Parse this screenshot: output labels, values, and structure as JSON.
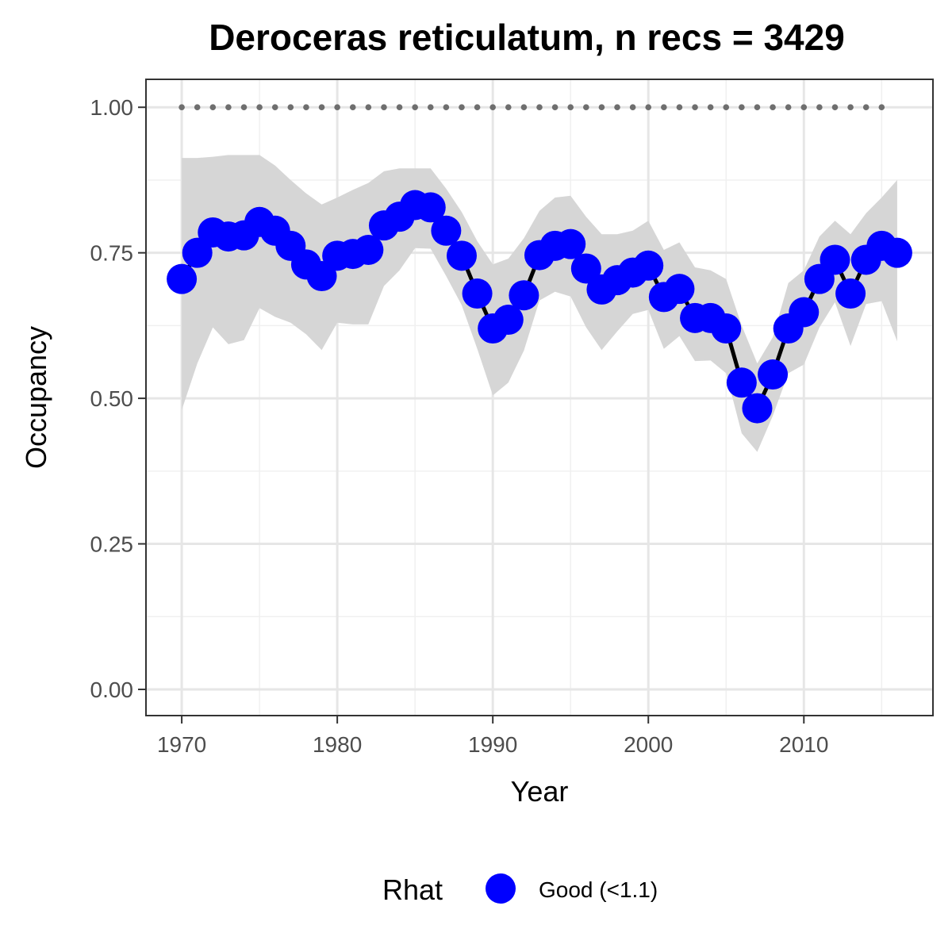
{
  "chart_data": {
    "type": "line",
    "title": "Deroceras reticulatum, n recs = 3429",
    "xlabel": "Year",
    "ylabel": "Occupancy",
    "xlim": [
      1967.7,
      2018.3
    ],
    "ylim": [
      -0.045,
      1.048
    ],
    "x_ticks": [
      1970,
      1980,
      1990,
      2000,
      2010
    ],
    "x_tick_labels": [
      "1970",
      "1980",
      "1990",
      "2000",
      "2010"
    ],
    "y_ticks": [
      0,
      0.25,
      0.5,
      0.75,
      1.0
    ],
    "y_tick_labels": [
      "0.00",
      "0.25",
      "0.50",
      "0.75",
      "1.00"
    ],
    "grid": true,
    "legend": {
      "title": "Rhat",
      "position": "bottom",
      "items": [
        {
          "label": "Good (<1.1)",
          "color": "#0000ff"
        }
      ]
    },
    "colors": {
      "points": "#0000ff",
      "line": "#000000",
      "ribbon": "#d6d6d6",
      "reference": "#6e6e6e"
    },
    "x": [
      1970,
      1971,
      1972,
      1973,
      1974,
      1975,
      1976,
      1977,
      1978,
      1979,
      1980,
      1981,
      1982,
      1983,
      1984,
      1985,
      1986,
      1987,
      1988,
      1989,
      1990,
      1991,
      1992,
      1993,
      1994,
      1995,
      1996,
      1997,
      1998,
      1999,
      2000,
      2001,
      2002,
      2003,
      2004,
      2005,
      2006,
      2007,
      2008,
      2009,
      2010,
      2011,
      2012,
      2013,
      2014,
      2015,
      2016
    ],
    "series": [
      {
        "values": [
          0.705,
          0.75,
          0.785,
          0.778,
          0.78,
          0.803,
          0.788,
          0.762,
          0.73,
          0.71,
          0.745,
          0.748,
          0.755,
          0.797,
          0.812,
          0.832,
          0.828,
          0.788,
          0.745,
          0.68,
          0.62,
          0.635,
          0.677,
          0.746,
          0.762,
          0.765,
          0.723,
          0.687,
          0.703,
          0.716,
          0.728,
          0.674,
          0.688,
          0.638,
          0.638,
          0.62,
          0.527,
          0.483,
          0.541,
          0.62,
          0.648,
          0.705,
          0.738,
          0.68,
          0.738,
          0.762,
          0.75
        ]
      }
    ],
    "ribbon": {
      "upper": [
        0.913,
        0.913,
        0.915,
        0.918,
        0.918,
        0.918,
        0.9,
        0.875,
        0.852,
        0.833,
        0.845,
        0.858,
        0.87,
        0.89,
        0.895,
        0.895,
        0.895,
        0.86,
        0.82,
        0.77,
        0.73,
        0.74,
        0.775,
        0.822,
        0.845,
        0.848,
        0.812,
        0.782,
        0.782,
        0.788,
        0.805,
        0.755,
        0.768,
        0.725,
        0.72,
        0.705,
        0.625,
        0.56,
        0.605,
        0.698,
        0.72,
        0.778,
        0.805,
        0.782,
        0.818,
        0.845,
        0.875
      ],
      "lower": [
        0.48,
        0.56,
        0.622,
        0.593,
        0.6,
        0.655,
        0.64,
        0.63,
        0.61,
        0.583,
        0.63,
        0.627,
        0.627,
        0.693,
        0.72,
        0.758,
        0.757,
        0.71,
        0.66,
        0.585,
        0.505,
        0.527,
        0.582,
        0.668,
        0.683,
        0.675,
        0.622,
        0.583,
        0.615,
        0.645,
        0.652,
        0.585,
        0.607,
        0.564,
        0.565,
        0.543,
        0.44,
        0.408,
        0.47,
        0.543,
        0.558,
        0.622,
        0.665,
        0.59,
        0.662,
        0.667,
        0.598
      ]
    },
    "reference_line": {
      "y": 1.0,
      "x_start": 1970,
      "x_end": 2015,
      "style": "dotted"
    }
  }
}
